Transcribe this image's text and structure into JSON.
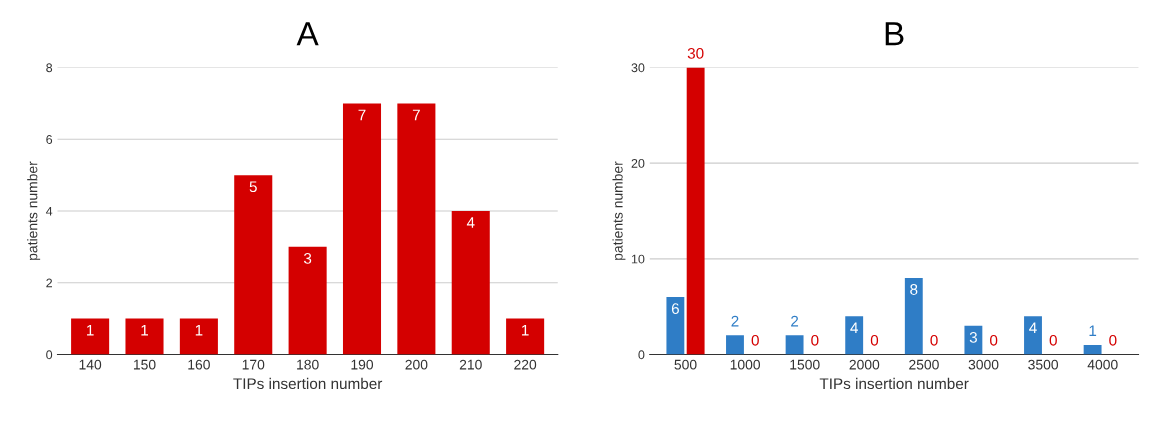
{
  "chart_data": [
    {
      "type": "bar",
      "title": "A",
      "xlabel": "TIPs insertion number",
      "ylabel": "patients number",
      "categories": [
        "140",
        "150",
        "160",
        "170",
        "180",
        "190",
        "200",
        "210",
        "220"
      ],
      "series": [
        {
          "color": "#d40000",
          "values": [
            1,
            1,
            1,
            5,
            3,
            7,
            7,
            4,
            1
          ]
        }
      ],
      "ylim": [
        0,
        8
      ],
      "yticks": [
        0,
        2,
        4,
        6,
        8
      ],
      "grid": "y",
      "data_labels": true
    },
    {
      "type": "bar",
      "title": "B",
      "xlabel": "TIPs insertion number",
      "ylabel": "patients number",
      "categories": [
        "500",
        "1000",
        "1500",
        "2000",
        "2500",
        "3000",
        "3500",
        "4000"
      ],
      "series": [
        {
          "color": "#2f7dc6",
          "values": [
            6,
            2,
            2,
            4,
            8,
            3,
            4,
            1
          ]
        },
        {
          "color": "#d40000",
          "values": [
            30,
            0,
            0,
            0,
            0,
            0,
            0,
            0
          ]
        }
      ],
      "ylim": [
        0,
        30
      ],
      "yticks": [
        0,
        10,
        20,
        30
      ],
      "grid": "y",
      "data_labels": true
    }
  ]
}
